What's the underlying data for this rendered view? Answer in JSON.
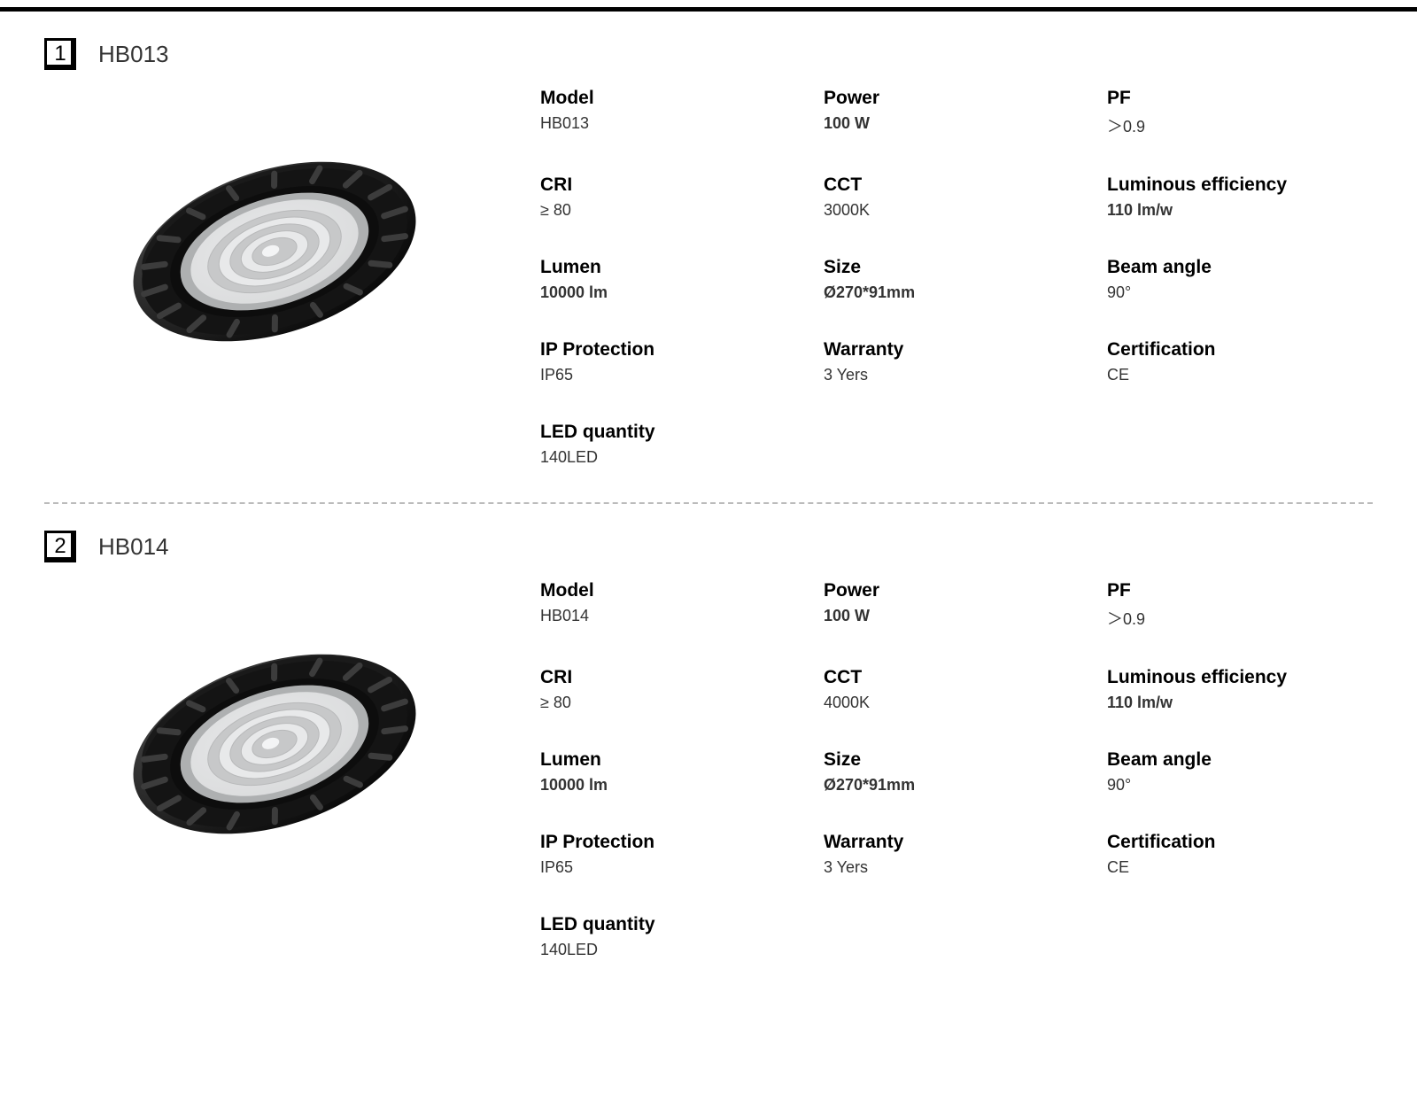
{
  "products": [
    {
      "index": "1",
      "title": "HB013",
      "specs": [
        {
          "label": "Model",
          "value": "HB013",
          "bold": false
        },
        {
          "label": "Power",
          "value": "100 W",
          "bold": true
        },
        {
          "label": "PF",
          "value": "＞0.9",
          "bold": false
        },
        {
          "label": "CRI",
          "value": "≥ 80",
          "bold": false
        },
        {
          "label": "CCT",
          "value": "3000K",
          "bold": false
        },
        {
          "label": "Luminous efficiency",
          "value": "110 lm/w",
          "bold": true
        },
        {
          "label": "Lumen",
          "value": "10000 lm",
          "bold": true
        },
        {
          "label": "Size",
          "value": "Ø270*91mm",
          "bold": true
        },
        {
          "label": "Beam angle",
          "value": "90°",
          "bold": false
        },
        {
          "label": "IP Protection",
          "value": "IP65",
          "bold": false
        },
        {
          "label": "Warranty",
          "value": "3 Yers",
          "bold": false
        },
        {
          "label": "Certification",
          "value": "CE",
          "bold": false
        },
        {
          "label": "LED quantity",
          "value": "140LED",
          "bold": false
        }
      ]
    },
    {
      "index": "2",
      "title": "HB014",
      "specs": [
        {
          "label": "Model",
          "value": "HB014",
          "bold": false
        },
        {
          "label": "Power",
          "value": "100 W",
          "bold": true
        },
        {
          "label": "PF",
          "value": "＞0.9",
          "bold": false
        },
        {
          "label": "CRI",
          "value": "≥ 80",
          "bold": false
        },
        {
          "label": "CCT",
          "value": "4000K",
          "bold": false
        },
        {
          "label": "Luminous efficiency",
          "value": "110 lm/w",
          "bold": true
        },
        {
          "label": "Lumen",
          "value": "10000 lm",
          "bold": true
        },
        {
          "label": "Size",
          "value": "Ø270*91mm",
          "bold": true
        },
        {
          "label": "Beam angle",
          "value": "90°",
          "bold": false
        },
        {
          "label": "IP Protection",
          "value": "IP65",
          "bold": false
        },
        {
          "label": "Warranty",
          "value": "3 Yers",
          "bold": false
        },
        {
          "label": "Certification",
          "value": "CE",
          "bold": false
        },
        {
          "label": "LED quantity",
          "value": "140LED",
          "bold": false
        }
      ]
    }
  ],
  "image": {
    "outer_color_dark": "#0a0a0a",
    "outer_color_mid": "#2b2b2b",
    "lens_outer": "#d9dadb",
    "lens_mid": "#c7c8c9",
    "lens_inner": "#e8e9ea",
    "ring_count": 5
  }
}
